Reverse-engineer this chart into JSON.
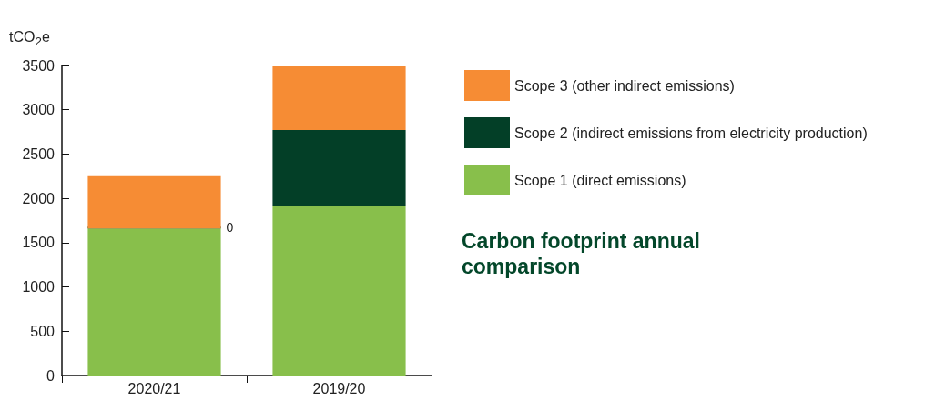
{
  "chart_data": {
    "type": "bar",
    "title": "Carbon footprint annual comparison",
    "ylabel": "tCO$_{2}$e",
    "categories": [
      "2020/21",
      "2019/20"
    ],
    "stacked": true,
    "legend": "right",
    "grid": false,
    "series": [
      {
        "name": "Scope 1 (direct emissions)",
        "color": "#88bf4b",
        "values": [
          1660,
          1910
        ]
      },
      {
        "name": "Scope 2 (indirect emissions from electricity production)",
        "color": "#033f27",
        "values": [
          0,
          860
        ],
        "value_labels": [
          "0",
          null
        ]
      },
      {
        "name": "Scope 3 (other indirect emissions)",
        "color": "#f68c34",
        "values": [
          590,
          720
        ]
      }
    ],
    "ylim": [
      0,
      3500
    ],
    "yticks": [
      0,
      500,
      1000,
      1500,
      2000,
      2500,
      3000,
      3500
    ]
  }
}
